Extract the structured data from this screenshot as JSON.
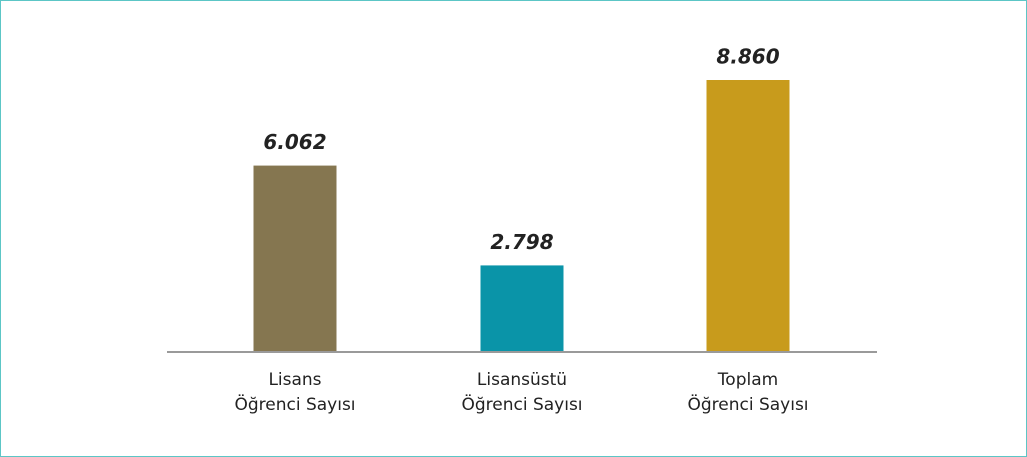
{
  "chart_data": {
    "type": "bar",
    "categories": [
      [
        "Lisans",
        "Öğrenci Sayısı"
      ],
      [
        "Lisansüstü",
        "Öğrenci Sayısı"
      ],
      [
        "Toplam",
        "Öğrenci Sayısı"
      ]
    ],
    "values": [
      6062,
      2798,
      8860
    ],
    "value_labels": [
      "6.062",
      "2.798",
      "8.860"
    ],
    "colors": [
      "#857650",
      "#0a94a8",
      "#c89b1c"
    ]
  }
}
